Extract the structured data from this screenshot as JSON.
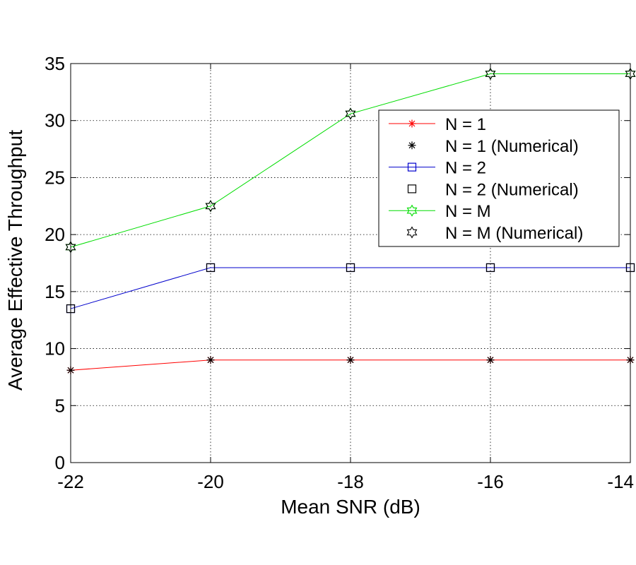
{
  "chart_data": {
    "type": "line",
    "title": "",
    "xlabel": "Mean SNR (dB)",
    "ylabel": "Average Effective Throughput",
    "x": [
      -22,
      -20,
      -18,
      -16,
      -14
    ],
    "xlim": [
      -22,
      -14
    ],
    "ylim": [
      0,
      35
    ],
    "xticks": [
      -22,
      -20,
      -18,
      -16,
      -14
    ],
    "yticks": [
      0,
      5,
      10,
      15,
      20,
      25,
      30,
      35
    ],
    "xtick_labels": [
      "-22",
      "-20",
      "-18",
      "-16",
      "-14"
    ],
    "ytick_labels": [
      "0",
      "5",
      "10",
      "15",
      "20",
      "25",
      "30",
      "35"
    ],
    "grid": true,
    "legend_position": "upper right",
    "series": [
      {
        "name": "N = 1",
        "values": [
          8.1,
          9.0,
          9.0,
          9.0,
          9.0
        ],
        "color": "#ff0000",
        "marker": "asterisk",
        "line": true
      },
      {
        "name": "N = 1 (Numerical)",
        "values": [
          8.1,
          9.0,
          9.0,
          9.0,
          9.0
        ],
        "color": "#000000",
        "marker": "asterisk",
        "line": false
      },
      {
        "name": "N = 2",
        "values": [
          13.5,
          17.1,
          17.1,
          17.1,
          17.1
        ],
        "color": "#0000cc",
        "marker": "square",
        "line": true
      },
      {
        "name": "N = 2 (Numerical)",
        "values": [
          13.5,
          17.1,
          17.1,
          17.1,
          17.1
        ],
        "color": "#000000",
        "marker": "square",
        "line": false
      },
      {
        "name": "N = M",
        "values": [
          18.9,
          22.5,
          30.6,
          34.1,
          34.1
        ],
        "color": "#00dd00",
        "marker": "hexagram",
        "line": true
      },
      {
        "name": "N = M (Numerical)",
        "values": [
          18.9,
          22.5,
          30.6,
          34.1,
          34.1
        ],
        "color": "#000000",
        "marker": "hexagram",
        "line": false
      }
    ]
  }
}
